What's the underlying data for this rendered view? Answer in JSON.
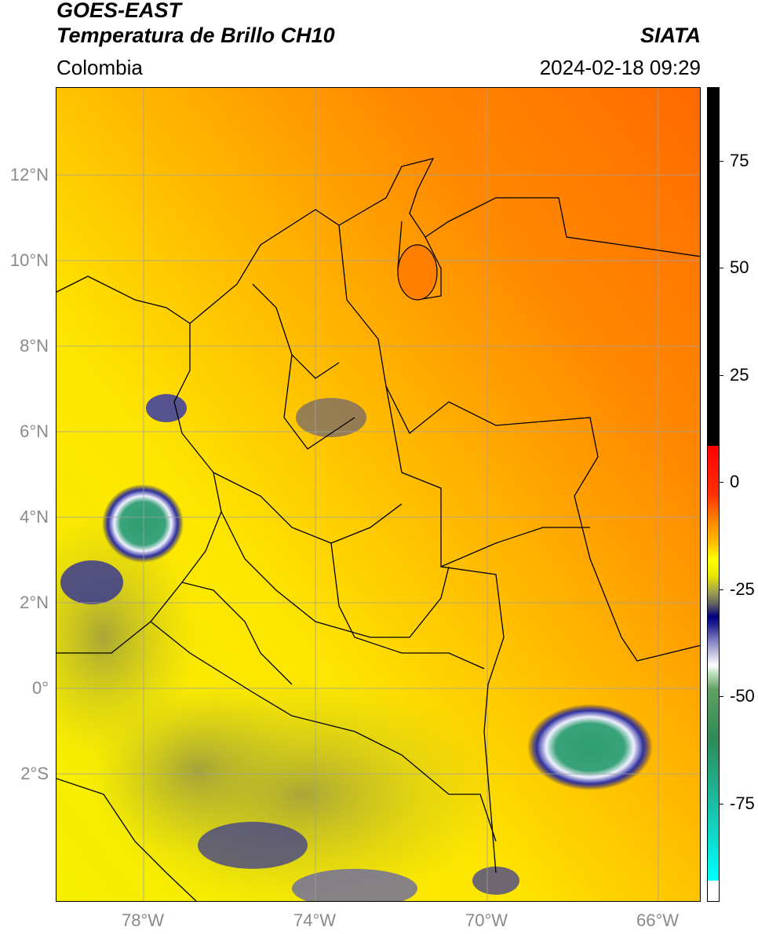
{
  "header": {
    "title_line1": "GOES-EAST",
    "title_line2": "Temperatura de Brillo CH10",
    "region": "Colombia",
    "org": "SIATA",
    "datetime": "2024-02-18 09:29"
  },
  "axes": {
    "lat_labels": [
      "12°N",
      "10°N",
      "8°N",
      "6°N",
      "4°N",
      "2°N",
      "0°",
      "2°S"
    ],
    "lon_labels": [
      "78°W",
      "74°W",
      "70°W",
      "66°W"
    ]
  },
  "colorbar": {
    "labels": [
      "75",
      "50",
      "25",
      "0",
      "-25",
      "-50",
      "-75"
    ],
    "colors": {
      "black": "#000000",
      "red": "#ff0000",
      "orange": "#ff7f00",
      "yellow": "#ffff00",
      "olive": "#8a8a30",
      "navy": "#000080",
      "white": "#ffffff",
      "green": "#2e8b57",
      "cyan": "#00ffff"
    }
  }
}
